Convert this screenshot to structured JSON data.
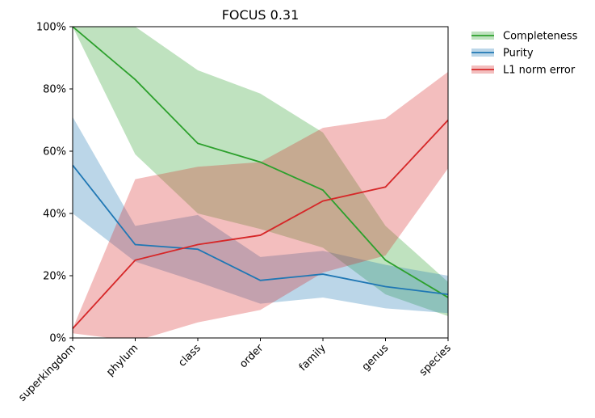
{
  "chart_data": {
    "type": "line",
    "title": "FOCUS 0.31",
    "categories": [
      "superkingdom",
      "phylum",
      "class",
      "order",
      "family",
      "genus",
      "species"
    ],
    "ylim": [
      0,
      100
    ],
    "yticks": [
      "0%",
      "20%",
      "40%",
      "60%",
      "80%",
      "100%"
    ],
    "grid": false,
    "legend_position": "right-outside",
    "series": [
      {
        "name": "Completeness",
        "color": "#2ca02c",
        "values": [
          100,
          83,
          62.5,
          56.5,
          47.5,
          25,
          13
        ],
        "band_upper": [
          100,
          100,
          86,
          78.5,
          66,
          36,
          18
        ],
        "band_lower": [
          100,
          59,
          40,
          35,
          29,
          14,
          7
        ]
      },
      {
        "name": "Purity",
        "color": "#1f77b4",
        "values": [
          55.5,
          30,
          28.5,
          18.5,
          20.5,
          16.5,
          14
        ],
        "band_upper": [
          71,
          36,
          39.5,
          26,
          28,
          23.5,
          20
        ],
        "band_lower": [
          40,
          24.5,
          18,
          11,
          13,
          9.5,
          8
        ]
      },
      {
        "name": "L1 norm error",
        "color": "#d62728",
        "values": [
          3,
          25,
          30,
          33,
          44,
          48.5,
          70
        ],
        "band_upper": [
          3,
          51,
          55,
          56.5,
          67.5,
          70.5,
          85.5
        ],
        "band_lower": [
          1.5,
          -1,
          5,
          9,
          21,
          26.5,
          54.5
        ]
      }
    ]
  }
}
